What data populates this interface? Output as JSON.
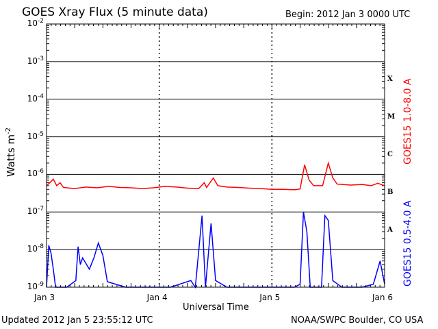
{
  "header": {
    "title": "GOES Xray Flux (5 minute data)",
    "begin": "Begin:  2012 Jan 3 0000 UTC"
  },
  "footer": {
    "updated": "Updated 2012 Jan  5 23:55:12 UTC",
    "credit": "NOAA/SWPC Boulder, CO USA"
  },
  "chart_data": {
    "type": "line",
    "title": "GOES Xray Flux (5 minute data)",
    "xlabel": "Universal Time",
    "ylabel": "Watts m",
    "ylabel_exp": "-2",
    "yscale": "log",
    "ylim_exp": [
      -9,
      -2
    ],
    "xlim_days": [
      0,
      3
    ],
    "y_ticks": [
      {
        "base": "10",
        "exp": "-2"
      },
      {
        "base": "10",
        "exp": "-3"
      },
      {
        "base": "10",
        "exp": "-4"
      },
      {
        "base": "10",
        "exp": "-5"
      },
      {
        "base": "10",
        "exp": "-6"
      },
      {
        "base": "10",
        "exp": "-7"
      },
      {
        "base": "10",
        "exp": "-8"
      },
      {
        "base": "10",
        "exp": "-9"
      }
    ],
    "x_ticks": [
      "Jan 3",
      "Jan 4",
      "Jan 5",
      "Jan 6"
    ],
    "flare_classes": [
      "X",
      "M",
      "C",
      "B",
      "A"
    ],
    "grid": true,
    "series": [
      {
        "name": "GOES15 1.0-8.0 A",
        "color": "#ff0000",
        "points": [
          [
            0.0,
            5e-07
          ],
          [
            0.03,
            6e-07
          ],
          [
            0.06,
            7.5e-07
          ],
          [
            0.09,
            5e-07
          ],
          [
            0.12,
            6e-07
          ],
          [
            0.15,
            4.5e-07
          ],
          [
            0.25,
            4.2e-07
          ],
          [
            0.35,
            4.6e-07
          ],
          [
            0.45,
            4.4e-07
          ],
          [
            0.55,
            4.8e-07
          ],
          [
            0.65,
            4.5e-07
          ],
          [
            0.75,
            4.4e-07
          ],
          [
            0.85,
            4.2e-07
          ],
          [
            0.95,
            4.4e-07
          ],
          [
            1.05,
            4.8e-07
          ],
          [
            1.15,
            4.6e-07
          ],
          [
            1.25,
            4.3e-07
          ],
          [
            1.35,
            4.2e-07
          ],
          [
            1.4,
            6e-07
          ],
          [
            1.42,
            4.5e-07
          ],
          [
            1.48,
            8e-07
          ],
          [
            1.52,
            5e-07
          ],
          [
            1.6,
            4.6e-07
          ],
          [
            1.7,
            4.5e-07
          ],
          [
            1.8,
            4.3e-07
          ],
          [
            1.9,
            4.2e-07
          ],
          [
            2.0,
            4e-07
          ],
          [
            2.1,
            4e-07
          ],
          [
            2.2,
            3.9e-07
          ],
          [
            2.25,
            4.1e-07
          ],
          [
            2.29,
            1.8e-06
          ],
          [
            2.33,
            7e-07
          ],
          [
            2.37,
            5e-07
          ],
          [
            2.45,
            5e-07
          ],
          [
            2.5,
            2e-06
          ],
          [
            2.54,
            8e-07
          ],
          [
            2.58,
            5.5e-07
          ],
          [
            2.7,
            5.2e-07
          ],
          [
            2.8,
            5.4e-07
          ],
          [
            2.88,
            5e-07
          ],
          [
            2.94,
            5.8e-07
          ],
          [
            3.0,
            5e-07
          ]
        ]
      },
      {
        "name": "GOES15 0.5-4.0 A",
        "color": "#0000ff",
        "points": [
          [
            0.0,
            1e-09
          ],
          [
            0.02,
            1.3e-08
          ],
          [
            0.04,
            8e-09
          ],
          [
            0.06,
            3e-09
          ],
          [
            0.08,
            1e-09
          ],
          [
            0.18,
            1e-09
          ],
          [
            0.26,
            1.5e-09
          ],
          [
            0.28,
            1.2e-08
          ],
          [
            0.3,
            4e-09
          ],
          [
            0.32,
            6e-09
          ],
          [
            0.38,
            3e-09
          ],
          [
            0.42,
            6e-09
          ],
          [
            0.46,
            1.5e-08
          ],
          [
            0.5,
            7e-09
          ],
          [
            0.54,
            1.4e-09
          ],
          [
            0.7,
            1e-09
          ],
          [
            0.88,
            1e-09
          ],
          [
            1.1,
            1e-09
          ],
          [
            1.28,
            1.5e-09
          ],
          [
            1.32,
            1e-09
          ],
          [
            1.38,
            8e-08
          ],
          [
            1.41,
            1e-09
          ],
          [
            1.46,
            5e-08
          ],
          [
            1.5,
            1.5e-09
          ],
          [
            1.6,
            1e-09
          ],
          [
            1.8,
            1e-09
          ],
          [
            2.0,
            1e-09
          ],
          [
            2.2,
            1e-09
          ],
          [
            2.25,
            1.2e-09
          ],
          [
            2.28,
            1e-07
          ],
          [
            2.31,
            3e-08
          ],
          [
            2.34,
            1e-09
          ],
          [
            2.44,
            1e-09
          ],
          [
            2.47,
            8e-08
          ],
          [
            2.5,
            6e-08
          ],
          [
            2.54,
            1.5e-09
          ],
          [
            2.62,
            1e-09
          ],
          [
            2.8,
            1e-09
          ],
          [
            2.9,
            1.2e-09
          ],
          [
            2.96,
            5e-09
          ],
          [
            3.0,
            1.2e-09
          ]
        ]
      }
    ]
  }
}
